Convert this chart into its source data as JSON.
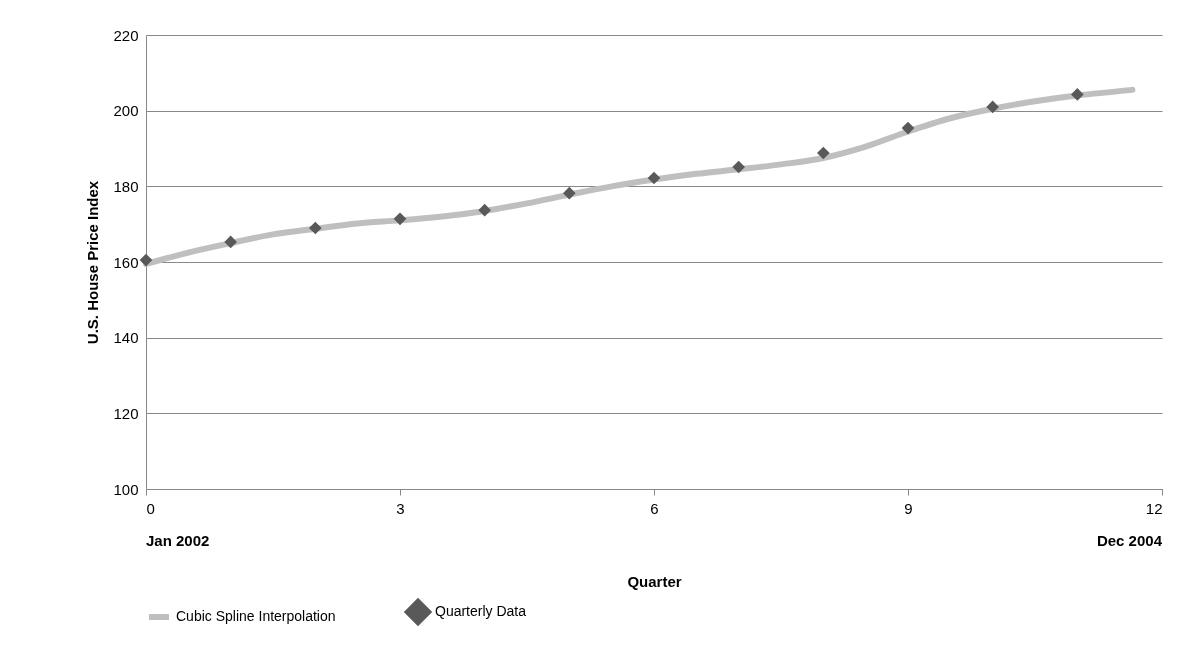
{
  "chart_data": {
    "type": "line",
    "xlabel": "Quarter",
    "ylabel": "U.S. House Price Index",
    "xlim": [
      0,
      12
    ],
    "xticks": [
      0,
      3,
      6,
      9,
      12
    ],
    "ylim": [
      100,
      220
    ],
    "yticks": [
      100,
      120,
      140,
      160,
      180,
      200,
      220
    ],
    "grid": "y",
    "legend": "bottom",
    "annotations": [
      "Jan 2002",
      "Dec 2004"
    ],
    "series": [
      {
        "name": "Cubic Spline Interpolation",
        "color": "#bfbfbf",
        "line_style": "solid",
        "x": [
          0,
          0.5,
          1,
          1.5,
          2,
          2.5,
          3,
          3.5,
          4,
          4.5,
          5,
          5.5,
          6,
          6.5,
          7,
          7.5,
          8,
          8.5,
          9,
          9.5,
          10,
          10.5,
          11,
          11.65
        ],
        "values": [
          159.5,
          162.5,
          165,
          167.3,
          168.8,
          170.2,
          171,
          172,
          173.5,
          175.5,
          177.8,
          180,
          181.8,
          183.3,
          184.5,
          185.8,
          187.5,
          190.5,
          194.5,
          198,
          200.5,
          202.5,
          204,
          205.5
        ]
      },
      {
        "name": "Quarterly Data",
        "type": "scatter",
        "color": "#595959",
        "marker": "diamond",
        "x": [
          0,
          1,
          2,
          3,
          4,
          5,
          6,
          7,
          8,
          9,
          10,
          11
        ],
        "values": [
          160.5,
          165.3,
          169,
          171.4,
          173.7,
          178.2,
          182.2,
          185.1,
          188.8,
          195.4,
          201,
          204.3
        ]
      }
    ]
  }
}
